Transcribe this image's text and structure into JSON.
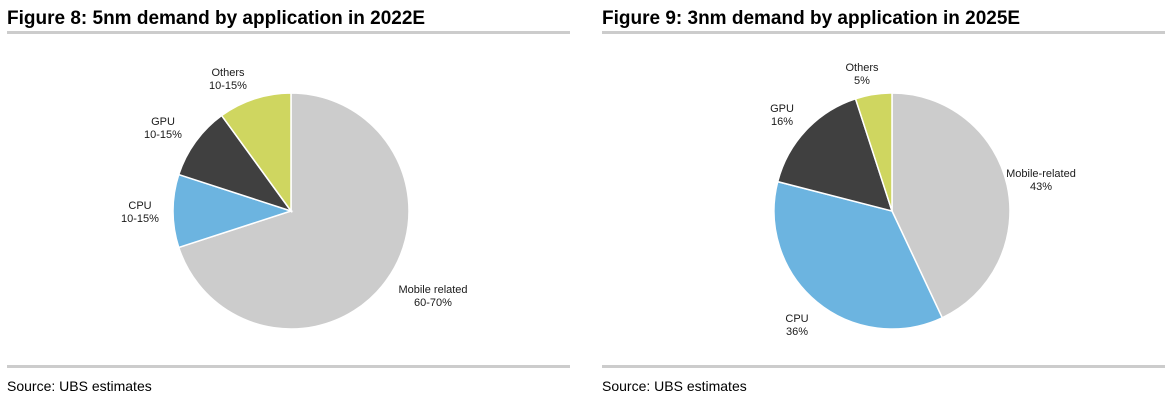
{
  "figures": [
    {
      "title": "Figure 8: 5nm demand by application in 2022E",
      "source": "Source: UBS estimates",
      "chart_data": {
        "type": "pie",
        "title": "Figure 8: 5nm demand by application in 2022E",
        "slices": [
          {
            "name": "Mobile related",
            "label": "60-70%",
            "value": 70,
            "color": "#cccccc"
          },
          {
            "name": "CPU",
            "label": "10-15%",
            "value": 10,
            "color": "#6cb4e0"
          },
          {
            "name": "GPU",
            "label": "10-15%",
            "value": 10,
            "color": "#404040"
          },
          {
            "name": "Others",
            "label": "10-15%",
            "value": 10,
            "color": "#cfd660"
          }
        ]
      }
    },
    {
      "title": "Figure 9: 3nm demand by application in 2025E",
      "source": "Source: UBS estimates",
      "chart_data": {
        "type": "pie",
        "title": "Figure 9: 3nm demand by application in 2025E",
        "slices": [
          {
            "name": "Mobile-related",
            "label": "43%",
            "value": 43,
            "color": "#cccccc"
          },
          {
            "name": "CPU",
            "label": "36%",
            "value": 36,
            "color": "#6cb4e0"
          },
          {
            "name": "GPU",
            "label": "16%",
            "value": 16,
            "color": "#404040"
          },
          {
            "name": "Others",
            "label": "5%",
            "value": 5,
            "color": "#cfd660"
          }
        ]
      }
    }
  ]
}
